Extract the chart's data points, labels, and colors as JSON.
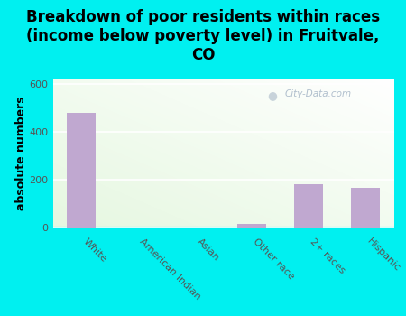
{
  "categories": [
    "White",
    "American Indian",
    "Asian",
    "Other race",
    "2+ races",
    "Hispanic"
  ],
  "values": [
    480,
    0,
    0,
    15,
    182,
    165
  ],
  "bar_color": "#c0a8d0",
  "title": "Breakdown of poor residents within races\n(income below poverty level) in Fruitvale,\nCO",
  "ylabel": "absolute numbers",
  "ylim": [
    0,
    620
  ],
  "yticks": [
    0,
    200,
    400,
    600
  ],
  "background_color": "#00f0f0",
  "plot_bg_topleft": "#e8f5e0",
  "plot_bg_white": "#ffffff",
  "watermark": "City-Data.com",
  "title_fontsize": 12,
  "ylabel_fontsize": 9,
  "tick_label_color": "#555555",
  "spine_color": "#00f0f0"
}
